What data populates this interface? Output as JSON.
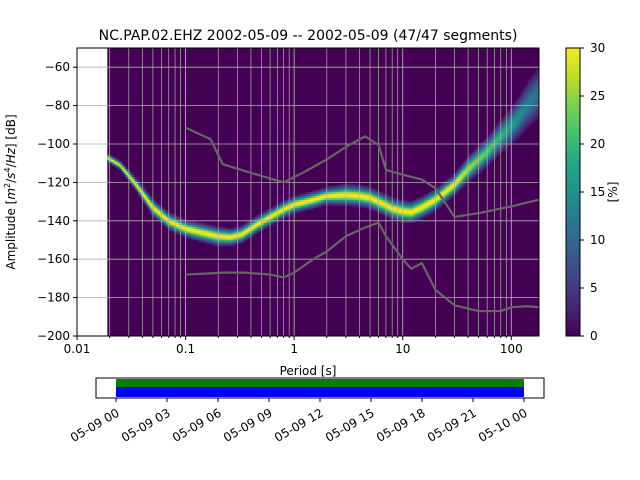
{
  "chart_data": [
    {
      "type": "heatmap",
      "title": "NC.PAP.02.EHZ   2002-05-09 -- 2002-05-09  (47/47 segments)",
      "xlabel": "Period [s]",
      "ylabel": "Amplitude [m²/s⁴/Hz] [dB]",
      "x_scale": "log",
      "xlim": [
        0.01,
        180
      ],
      "ylim": [
        -200,
        -50
      ],
      "x_ticks": [
        {
          "value": 0.01,
          "label": "0.01"
        },
        {
          "value": 0.1,
          "label": "0.1"
        },
        {
          "value": 1,
          "label": "1"
        },
        {
          "value": 10,
          "label": "10"
        },
        {
          "value": 100,
          "label": "100"
        }
      ],
      "y_ticks": [
        {
          "value": -60,
          "label": "−60"
        },
        {
          "value": -80,
          "label": "−80"
        },
        {
          "value": -100,
          "label": "−100"
        },
        {
          "value": -120,
          "label": "−120"
        },
        {
          "value": -140,
          "label": "−140"
        },
        {
          "value": -160,
          "label": "−160"
        },
        {
          "value": -180,
          "label": "−180"
        },
        {
          "value": -200,
          "label": "−200"
        }
      ],
      "grid": true,
      "colorbar": {
        "label": "[%]",
        "range": [
          0,
          30
        ],
        "ticks": [
          {
            "value": 0,
            "label": "0"
          },
          {
            "value": 5,
            "label": "5"
          },
          {
            "value": 10,
            "label": "10"
          },
          {
            "value": 15,
            "label": "15"
          },
          {
            "value": 20,
            "label": "20"
          },
          {
            "value": 25,
            "label": "25"
          },
          {
            "value": 30,
            "label": "30"
          }
        ]
      },
      "data_period_min": 0.019,
      "psd_ridge": {
        "period": [
          0.019,
          0.025,
          0.035,
          0.05,
          0.07,
          0.1,
          0.14,
          0.2,
          0.26,
          0.33,
          0.45,
          0.6,
          0.8,
          1.0,
          1.5,
          2.0,
          3.0,
          4.0,
          5.0,
          6.5,
          8.0,
          10.0,
          12.0,
          15.0,
          20.0,
          30.0,
          40.0,
          60.0,
          80.0,
          110.0,
          140.0,
          180.0
        ],
        "db": [
          -107,
          -111,
          -121,
          -133,
          -140,
          -144,
          -146,
          -148,
          -148.5,
          -147,
          -142,
          -138,
          -134,
          -131.5,
          -129,
          -127,
          -126.5,
          -127,
          -128,
          -131,
          -133.5,
          -135,
          -135.5,
          -133,
          -129,
          -121,
          -113,
          -104,
          -96,
          -88,
          -80,
          -73
        ],
        "spread_db": [
          1,
          1,
          1.5,
          2,
          2,
          2,
          2.2,
          2.2,
          2,
          2,
          2,
          2,
          2,
          2,
          2,
          2,
          2.5,
          2.5,
          2.5,
          2.5,
          2.5,
          2.5,
          2.5,
          2.5,
          2.5,
          2.5,
          3,
          3.5,
          4,
          5,
          6,
          7
        ]
      },
      "reference_lines": [
        {
          "period": [
            0.1,
            0.17,
            0.22,
            0.4,
            0.8,
            1.2,
            2.0,
            3.0,
            4.5,
            6.0,
            7.0,
            10.0,
            15.0,
            20.0,
            30.0,
            50.0,
            100.0,
            180.0
          ],
          "db": [
            -91.5,
            -97.5,
            -110.5,
            -115,
            -120,
            -115,
            -108,
            -101.5,
            -96,
            -100.5,
            -113.5,
            -116,
            -118.5,
            -123,
            -138,
            -136,
            -132.5,
            -129
          ]
        },
        {
          "period": [
            0.1,
            0.15,
            0.22,
            0.35,
            0.6,
            0.8,
            1.0,
            1.5,
            2.0,
            3.0,
            4.5,
            6.0,
            7.0,
            10.0,
            12.0,
            15.0,
            20.0,
            30.0,
            50.0,
            80.0,
            100.0,
            140.0,
            180.0
          ],
          "db": [
            -168,
            -167.5,
            -167,
            -167,
            -168,
            -169.5,
            -167,
            -160,
            -156,
            -148,
            -143.5,
            -141,
            -148,
            -160,
            -165,
            -162,
            -176,
            -184,
            -187,
            -187,
            -185,
            -184.5,
            -185
          ]
        }
      ]
    },
    {
      "type": "timeline",
      "x_ticks": [
        "05-09 00",
        "05-09 03",
        "05-09 06",
        "05-09 09",
        "05-09 12",
        "05-09 15",
        "05-09 18",
        "05-09 21",
        "05-10 00"
      ],
      "coverage_start": "05-09 00",
      "coverage_end": "05-10 00",
      "colors": {
        "upper": "#008000",
        "lower": "#0000ff"
      }
    }
  ],
  "colors": {
    "background": "#440154",
    "grid": "#b0b0b0",
    "reference_line": "#666666"
  }
}
